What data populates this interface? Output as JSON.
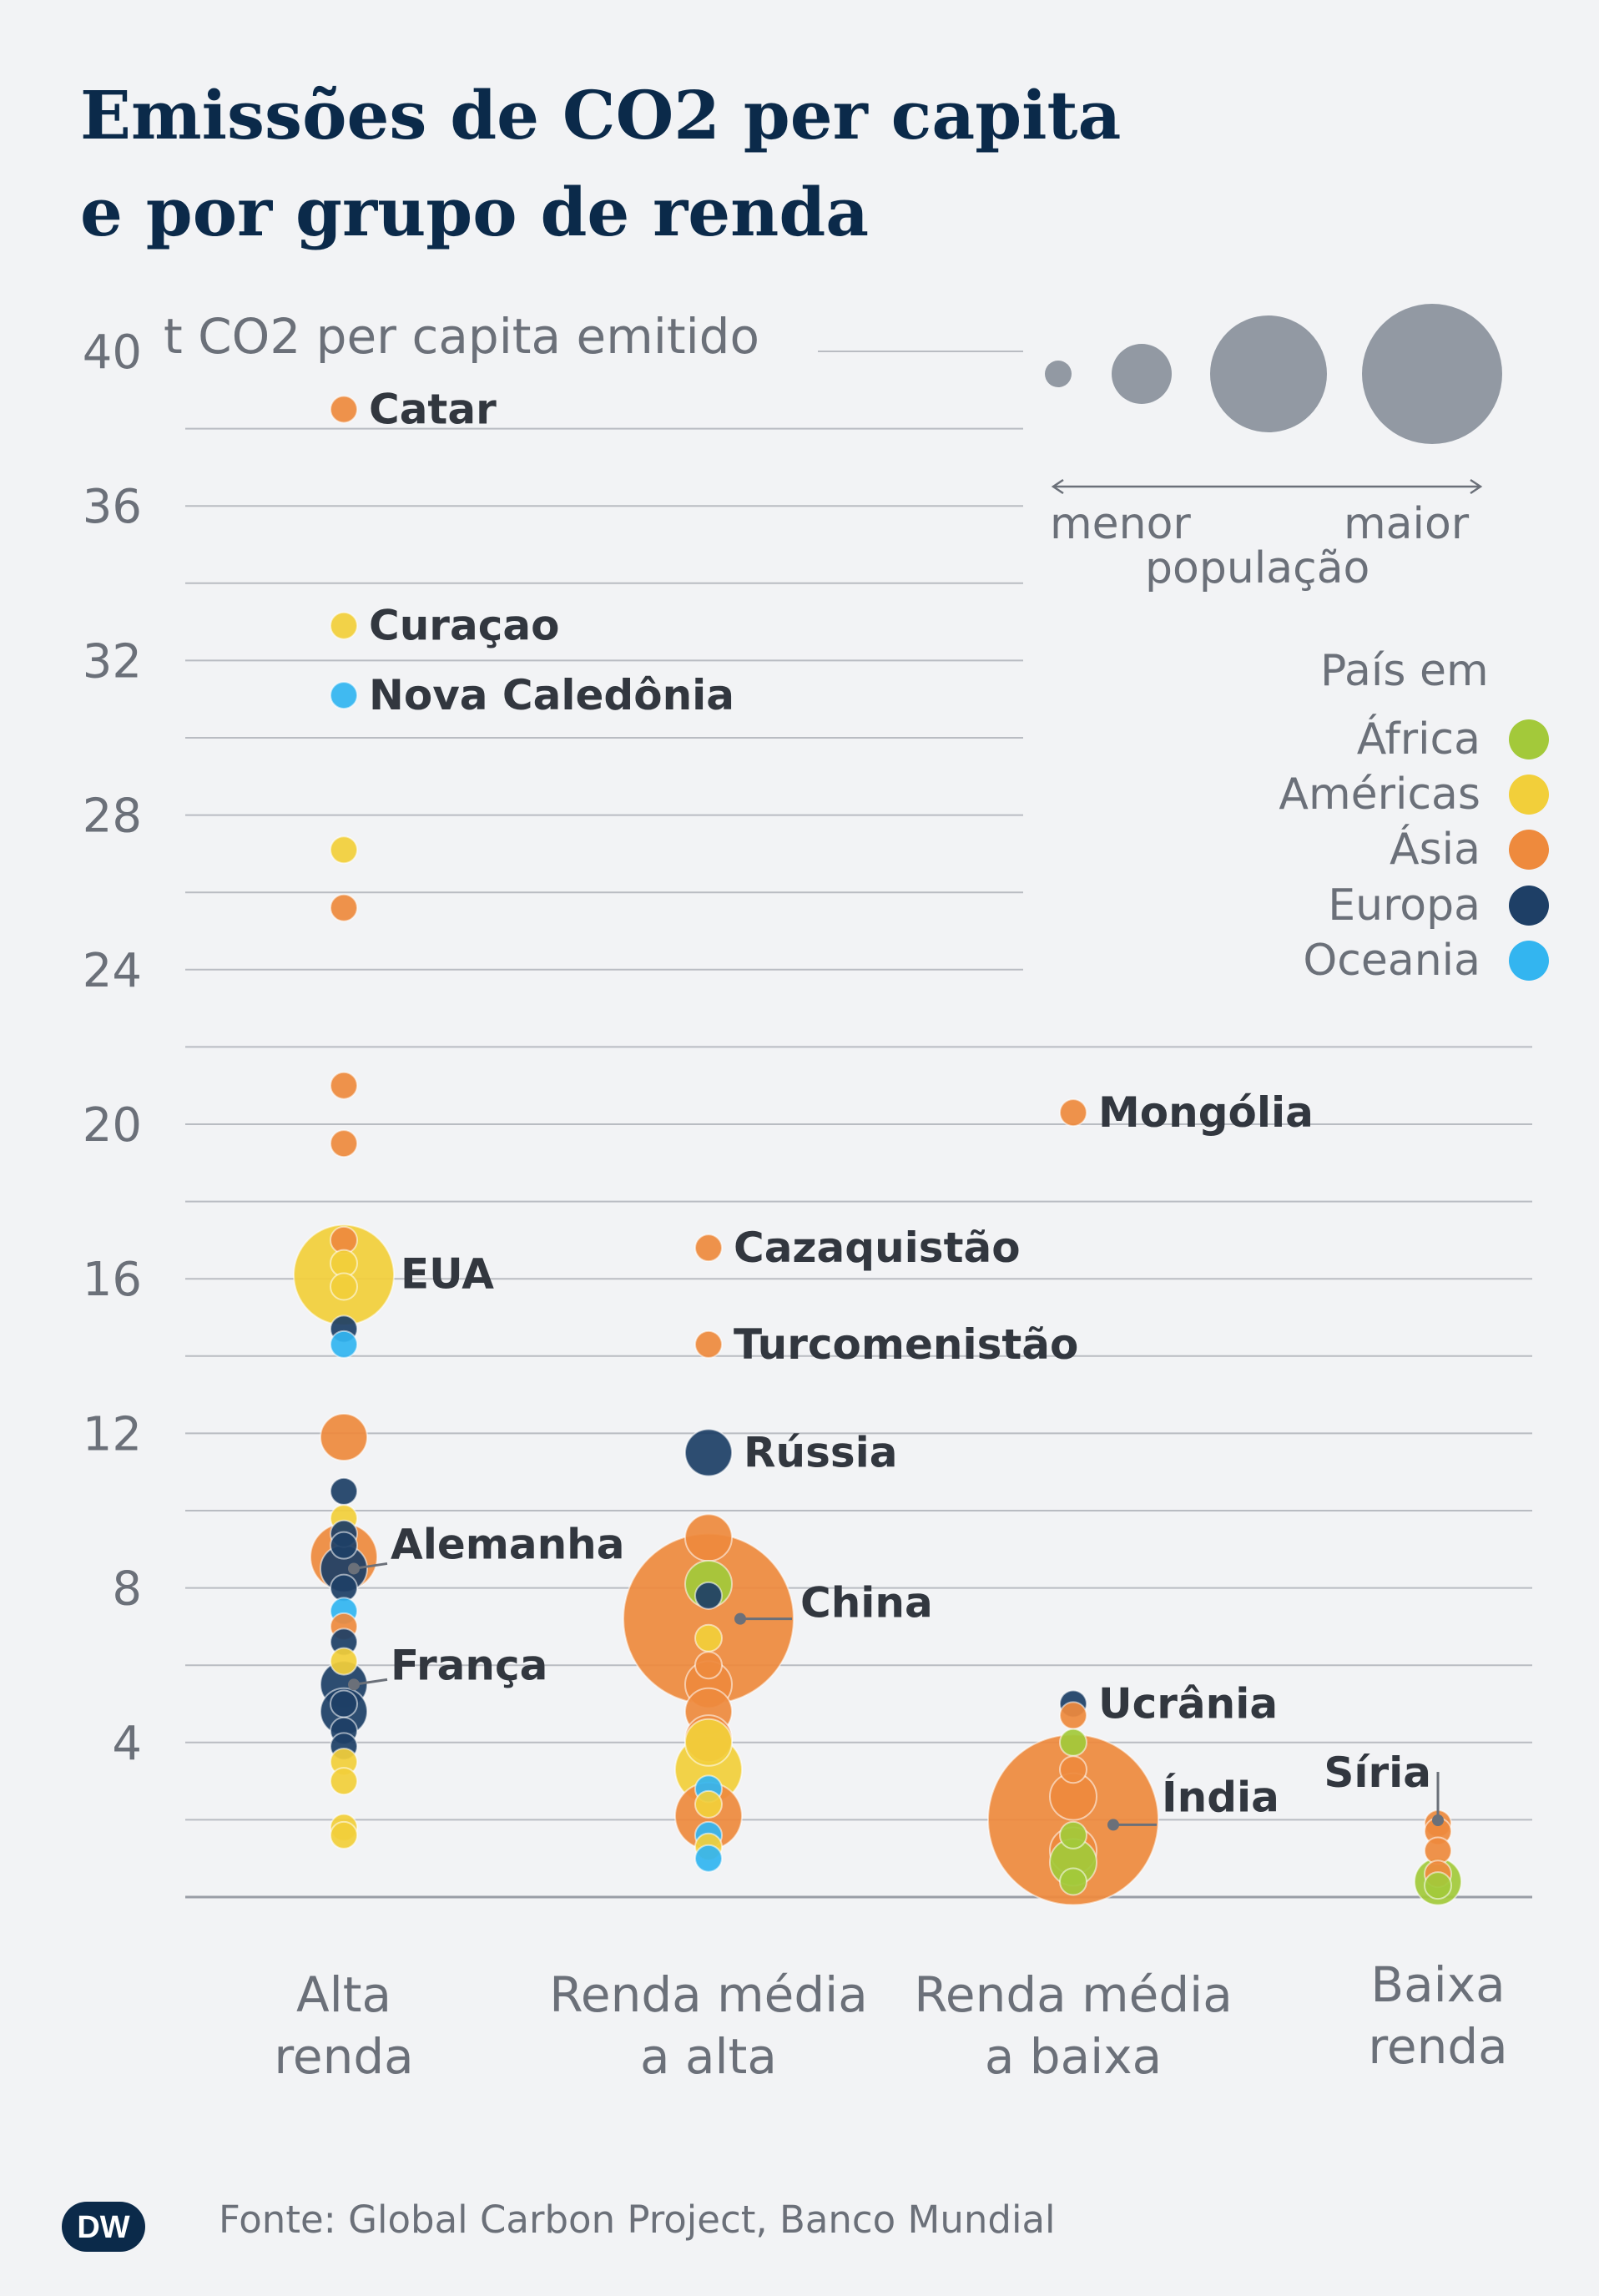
{
  "title": {
    "line1": "Emissões de CO2 per capita",
    "line2": "e por grupo de renda"
  },
  "chart_data": {
    "type": "scatter",
    "title": "Emissões de CO2 per capita e por grupo de renda",
    "ylabel": "t CO2 per capita emitido",
    "ylim": [
      0,
      40
    ],
    "yticks": [
      4,
      8,
      12,
      16,
      20,
      24,
      28,
      32,
      36,
      40
    ],
    "grid": true,
    "legend_position": "right",
    "categories": [
      "Alta\nrenda",
      "Renda média\na alta",
      "Renda média\na baixa",
      "Baixa\nrenda"
    ],
    "region_colors": {
      "África": "#a3c93a",
      "Américas": "#f2cf3a",
      "Ásia": "#ee8a3d",
      "Europa": "#1e3f66",
      "Oceania": "#33b5f0"
    },
    "points": [
      {
        "group": 0,
        "y": 38.5,
        "region": "Ásia",
        "size": 1,
        "label": "Catar"
      },
      {
        "group": 0,
        "y": 32.9,
        "region": "Américas",
        "size": 1,
        "label": "Curaçao"
      },
      {
        "group": 0,
        "y": 31.1,
        "region": "Oceania",
        "size": 1,
        "label": "Nova Caledônia"
      },
      {
        "group": 0,
        "y": 27.1,
        "region": "Américas",
        "size": 1
      },
      {
        "group": 0,
        "y": 25.6,
        "region": "Ásia",
        "size": 1
      },
      {
        "group": 0,
        "y": 21.0,
        "region": "Ásia",
        "size": 1
      },
      {
        "group": 0,
        "y": 19.5,
        "region": "Ásia",
        "size": 1
      },
      {
        "group": 0,
        "y": 17.0,
        "region": "Ásia",
        "size": 1
      },
      {
        "group": 0,
        "y": 16.4,
        "region": "Américas",
        "size": 1
      },
      {
        "group": 0,
        "y": 15.8,
        "region": "Américas",
        "size": 1
      },
      {
        "group": 0,
        "y": 16.1,
        "region": "Américas",
        "size": 4,
        "label": "EUA"
      },
      {
        "group": 0,
        "y": 14.7,
        "region": "Europa",
        "size": 1
      },
      {
        "group": 0,
        "y": 14.3,
        "region": "Oceania",
        "size": 1
      },
      {
        "group": 0,
        "y": 11.9,
        "region": "Ásia",
        "size": 2
      },
      {
        "group": 0,
        "y": 10.5,
        "region": "Europa",
        "size": 1
      },
      {
        "group": 0,
        "y": 9.8,
        "region": "Américas",
        "size": 1
      },
      {
        "group": 0,
        "y": 9.4,
        "region": "Europa",
        "size": 1
      },
      {
        "group": 0,
        "y": 9.1,
        "region": "Europa",
        "size": 1
      },
      {
        "group": 0,
        "y": 8.8,
        "region": "Ásia",
        "size": 3
      },
      {
        "group": 0,
        "y": 8.5,
        "region": "Europa",
        "size": 2,
        "label": "Alemanha"
      },
      {
        "group": 0,
        "y": 8.0,
        "region": "Europa",
        "size": 1
      },
      {
        "group": 0,
        "y": 7.4,
        "region": "Oceania",
        "size": 1
      },
      {
        "group": 0,
        "y": 7.0,
        "region": "Ásia",
        "size": 1
      },
      {
        "group": 0,
        "y": 6.6,
        "region": "Europa",
        "size": 1
      },
      {
        "group": 0,
        "y": 6.1,
        "region": "Américas",
        "size": 1
      },
      {
        "group": 0,
        "y": 5.5,
        "region": "Europa",
        "size": 2,
        "label": "França"
      },
      {
        "group": 0,
        "y": 5.0,
        "region": "Europa",
        "size": 1
      },
      {
        "group": 0,
        "y": 4.8,
        "region": "Europa",
        "size": 2
      },
      {
        "group": 0,
        "y": 4.3,
        "region": "Europa",
        "size": 1
      },
      {
        "group": 0,
        "y": 3.9,
        "region": "Europa",
        "size": 1
      },
      {
        "group": 0,
        "y": 3.5,
        "region": "Américas",
        "size": 1
      },
      {
        "group": 0,
        "y": 3.0,
        "region": "Américas",
        "size": 1
      },
      {
        "group": 0,
        "y": 1.8,
        "region": "Américas",
        "size": 1
      },
      {
        "group": 0,
        "y": 1.6,
        "region": "Américas",
        "size": 1
      },
      {
        "group": 1,
        "y": 16.8,
        "region": "Ásia",
        "size": 1,
        "label": "Cazaquistão"
      },
      {
        "group": 1,
        "y": 14.3,
        "region": "Ásia",
        "size": 1,
        "label": "Turcomenistão"
      },
      {
        "group": 1,
        "y": 11.5,
        "region": "Europa",
        "size": 2,
        "label": "Rússia"
      },
      {
        "group": 1,
        "y": 9.3,
        "region": "Ásia",
        "size": 2
      },
      {
        "group": 1,
        "y": 8.1,
        "region": "África",
        "size": 2
      },
      {
        "group": 1,
        "y": 7.8,
        "region": "Europa",
        "size": 1
      },
      {
        "group": 1,
        "y": 7.2,
        "region": "Ásia",
        "size": 5,
        "label": "China"
      },
      {
        "group": 1,
        "y": 6.7,
        "region": "Américas",
        "size": 1
      },
      {
        "group": 1,
        "y": 6.0,
        "region": "Ásia",
        "size": 1
      },
      {
        "group": 1,
        "y": 5.5,
        "region": "Ásia",
        "size": 2
      },
      {
        "group": 1,
        "y": 4.8,
        "region": "Ásia",
        "size": 2
      },
      {
        "group": 1,
        "y": 4.1,
        "region": "Ásia",
        "size": 2
      },
      {
        "group": 1,
        "y": 4.0,
        "region": "Américas",
        "size": 2
      },
      {
        "group": 1,
        "y": 3.3,
        "region": "Américas",
        "size": 3
      },
      {
        "group": 1,
        "y": 2.8,
        "region": "Oceania",
        "size": 1
      },
      {
        "group": 1,
        "y": 2.4,
        "region": "Américas",
        "size": 1
      },
      {
        "group": 1,
        "y": 2.1,
        "region": "Ásia",
        "size": 3
      },
      {
        "group": 1,
        "y": 1.6,
        "region": "Oceania",
        "size": 1
      },
      {
        "group": 1,
        "y": 1.3,
        "region": "Américas",
        "size": 1
      },
      {
        "group": 1,
        "y": 1.0,
        "region": "Oceania",
        "size": 1
      },
      {
        "group": 2,
        "y": 20.3,
        "region": "Ásia",
        "size": 1,
        "label": "Mongólia"
      },
      {
        "group": 2,
        "y": 5.0,
        "region": "Europa",
        "size": 1,
        "label": "Ucrânia"
      },
      {
        "group": 2,
        "y": 4.7,
        "region": "Ásia",
        "size": 1
      },
      {
        "group": 2,
        "y": 4.0,
        "region": "África",
        "size": 1
      },
      {
        "group": 2,
        "y": 3.3,
        "region": "Ásia",
        "size": 1
      },
      {
        "group": 2,
        "y": 2.6,
        "region": "Ásia",
        "size": 2
      },
      {
        "group": 2,
        "y": 2.0,
        "region": "Ásia",
        "size": 5,
        "label": "Índia"
      },
      {
        "group": 2,
        "y": 1.6,
        "region": "África",
        "size": 1
      },
      {
        "group": 2,
        "y": 1.2,
        "region": "Ásia",
        "size": 2
      },
      {
        "group": 2,
        "y": 0.9,
        "region": "África",
        "size": 2
      },
      {
        "group": 2,
        "y": 0.4,
        "region": "África",
        "size": 1
      },
      {
        "group": 3,
        "y": 1.9,
        "region": "Ásia",
        "size": 1,
        "label": "Síria"
      },
      {
        "group": 3,
        "y": 1.7,
        "region": "Ásia",
        "size": 1
      },
      {
        "group": 3,
        "y": 1.2,
        "region": "Ásia",
        "size": 1
      },
      {
        "group": 3,
        "y": 0.6,
        "region": "Ásia",
        "size": 1
      },
      {
        "group": 3,
        "y": 0.4,
        "region": "África",
        "size": 2
      },
      {
        "group": 3,
        "y": 0.3,
        "region": "África",
        "size": 1
      }
    ],
    "size_legend": {
      "low": "menor",
      "high": "maior",
      "label": "população"
    },
    "color_legend_title": "País em",
    "color_legend": [
      "África",
      "Américas",
      "Ásia",
      "Europa",
      "Oceania"
    ]
  },
  "footer": {
    "source": "Fonte: Global Carbon Project, Banco Mundial"
  },
  "logo": {
    "text": "DW"
  }
}
